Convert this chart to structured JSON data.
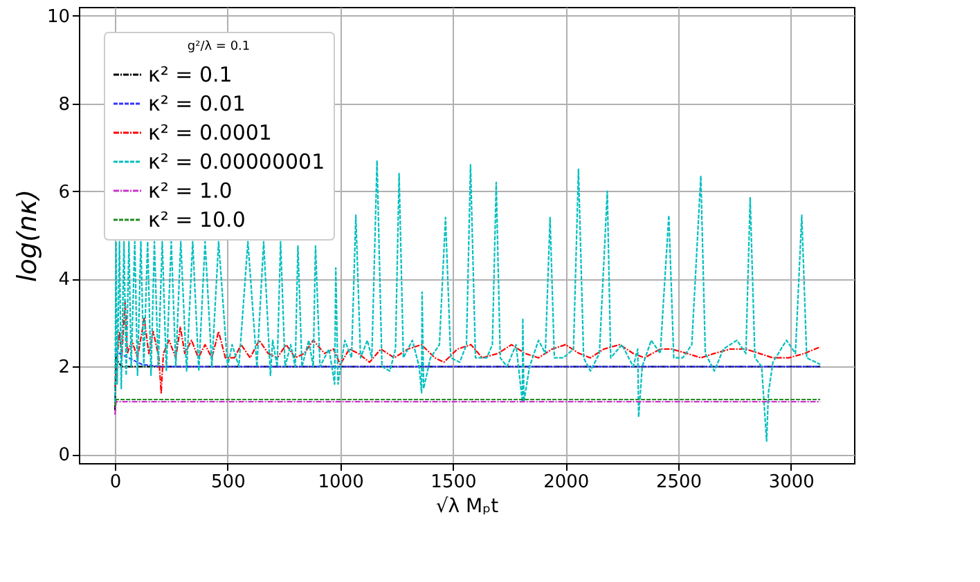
{
  "chart_data": {
    "type": "line",
    "xlabel": "√λ Mₚt",
    "ylabel": "log(nκ)",
    "legend_title": "g²/λ = 0.1",
    "legend": "top left",
    "grid": true,
    "xlim": [
      -160,
      3280
    ],
    "ylim": [
      -0.2,
      10.2
    ],
    "xticks": [
      0,
      500,
      1000,
      1500,
      2000,
      2500,
      3000
    ],
    "yticks": [
      0,
      2,
      4,
      6,
      8,
      10
    ],
    "series": [
      {
        "name": "κ² = 0.1",
        "color": "#000000",
        "line_style": "dashdot",
        "x": [
          0,
          5,
          15,
          30,
          3130
        ],
        "values": [
          1.0,
          2.3,
          2.1,
          2.0,
          2.0
        ]
      },
      {
        "name": "κ² = 0.01",
        "color": "#3333ff",
        "line_style": "dashed",
        "x": [
          0,
          20,
          60,
          120,
          200,
          3130
        ],
        "values": [
          2.4,
          2.3,
          2.2,
          2.05,
          2.0,
          2.0
        ]
      },
      {
        "name": "κ² = 0.0001",
        "color": "#ff0000",
        "line_style": "dashdot",
        "x": [
          0,
          10,
          20,
          30,
          45,
          55,
          75,
          100,
          130,
          150,
          170,
          195,
          205,
          215,
          240,
          270,
          290,
          310,
          340,
          370,
          400,
          430,
          460,
          490,
          530,
          560,
          600,
          640,
          680,
          720,
          760,
          800,
          840,
          880,
          930,
          970,
          1000,
          1040,
          1080,
          1130,
          1180,
          1240,
          1300,
          1360,
          1420,
          1460,
          1520,
          1580,
          1630,
          1700,
          1760,
          1820,
          1880,
          1940,
          2000,
          2060,
          2110,
          2170,
          2240,
          2300,
          2350,
          2420,
          2470,
          2540,
          2600,
          2660,
          2730,
          2800,
          2860,
          2920,
          2990,
          3060,
          3130
        ],
        "values": [
          1.5,
          2.2,
          2.8,
          2.2,
          3.5,
          2.3,
          2.6,
          2.2,
          3.1,
          2.3,
          2.8,
          2.2,
          1.4,
          2.3,
          2.6,
          2.2,
          2.9,
          2.3,
          2.6,
          2.2,
          2.5,
          2.2,
          2.8,
          2.2,
          2.2,
          2.5,
          2.2,
          2.6,
          2.3,
          2.2,
          2.5,
          2.2,
          2.3,
          2.6,
          2.3,
          2.4,
          2.05,
          2.4,
          2.3,
          2.1,
          2.4,
          2.2,
          2.4,
          2.5,
          2.2,
          2.1,
          2.4,
          2.5,
          2.2,
          2.3,
          2.5,
          2.3,
          2.2,
          2.4,
          2.5,
          2.3,
          2.2,
          2.4,
          2.5,
          2.3,
          2.2,
          2.4,
          2.4,
          2.3,
          2.2,
          2.3,
          2.4,
          2.4,
          2.3,
          2.2,
          2.2,
          2.3,
          2.45
        ]
      },
      {
        "name": "κ² = 0.00000001",
        "color": "#00bfbf",
        "line_style": "dashed",
        "x": [
          0,
          5,
          10,
          20,
          28,
          40,
          50,
          62,
          72,
          88,
          100,
          115,
          128,
          145,
          160,
          175,
          192,
          210,
          228,
          250,
          270,
          292,
          318,
          345,
          372,
          400,
          430,
          460,
          500,
          520,
          550,
          590,
          630,
          660,
          690,
          700,
          720,
          735,
          755,
          780,
          800,
          812,
          830,
          860,
          880,
          890,
          910,
          950,
          975,
          980,
          990,
          1020,
          1050,
          1069,
          1090,
          1120,
          1140,
          1163,
          1185,
          1220,
          1245,
          1261,
          1280,
          1320,
          1350,
          1361,
          1363,
          1370,
          1400,
          1440,
          1467,
          1490,
          1530,
          1560,
          1578,
          1600,
          1650,
          1675,
          1692,
          1710,
          1740,
          1780,
          1808,
          1810,
          1815,
          1840,
          1880,
          1910,
          1931,
          1950,
          1990,
          2035,
          2057,
          2080,
          2110,
          2150,
          2185,
          2200,
          2250,
          2300,
          2320,
          2324,
          2340,
          2380,
          2420,
          2458,
          2480,
          2520,
          2560,
          2600,
          2620,
          2660,
          2700,
          2760,
          2800,
          2819,
          2840,
          2870,
          2892,
          2900,
          2920,
          2980,
          3020,
          3048,
          3070,
          3110,
          3130
        ],
        "values": [
          1.2,
          4.85,
          1.6,
          4.85,
          1.5,
          4.85,
          1.8,
          4.85,
          2.0,
          4.85,
          1.8,
          4.85,
          2.0,
          4.85,
          1.8,
          4.85,
          2.0,
          4.85,
          1.9,
          4.85,
          2.0,
          4.85,
          1.9,
          4.85,
          1.9,
          4.85,
          2.0,
          4.85,
          2.0,
          2.5,
          2.0,
          4.85,
          2.0,
          4.85,
          1.8,
          2.6,
          2.0,
          4.85,
          2.0,
          2.5,
          2.0,
          4.75,
          2.0,
          2.6,
          2.0,
          4.75,
          2.0,
          2.4,
          1.6,
          4.25,
          1.6,
          2.6,
          2.2,
          5.45,
          2.2,
          2.6,
          2.2,
          6.7,
          2.0,
          1.9,
          2.4,
          6.4,
          2.2,
          2.6,
          2.0,
          1.4,
          3.7,
          1.5,
          2.2,
          2.5,
          5.4,
          2.2,
          2.1,
          2.5,
          6.6,
          2.2,
          2.2,
          2.5,
          6.2,
          2.2,
          2.0,
          2.5,
          1.2,
          3.1,
          1.2,
          2.0,
          2.6,
          2.3,
          5.4,
          2.2,
          2.2,
          2.4,
          6.5,
          2.2,
          1.9,
          2.3,
          6.0,
          2.2,
          2.5,
          2.0,
          2.4,
          0.85,
          2.0,
          2.6,
          2.3,
          5.45,
          2.2,
          2.2,
          2.5,
          6.35,
          2.3,
          1.9,
          2.4,
          2.6,
          2.3,
          5.85,
          2.2,
          2.0,
          0.3,
          1.4,
          2.1,
          2.6,
          2.3,
          5.45,
          2.2,
          2.1,
          2.05
        ]
      },
      {
        "name": "κ² = 1.0",
        "color": "#cc33cc",
        "line_style": "dashdot",
        "x": [
          0,
          5,
          3130
        ],
        "values": [
          0.9,
          1.2,
          1.2
        ]
      },
      {
        "name": "κ² = 10.0",
        "color": "#228b22",
        "line_style": "dashed",
        "x": [
          0,
          5,
          3130
        ],
        "values": [
          1.1,
          1.25,
          1.25
        ]
      }
    ]
  }
}
